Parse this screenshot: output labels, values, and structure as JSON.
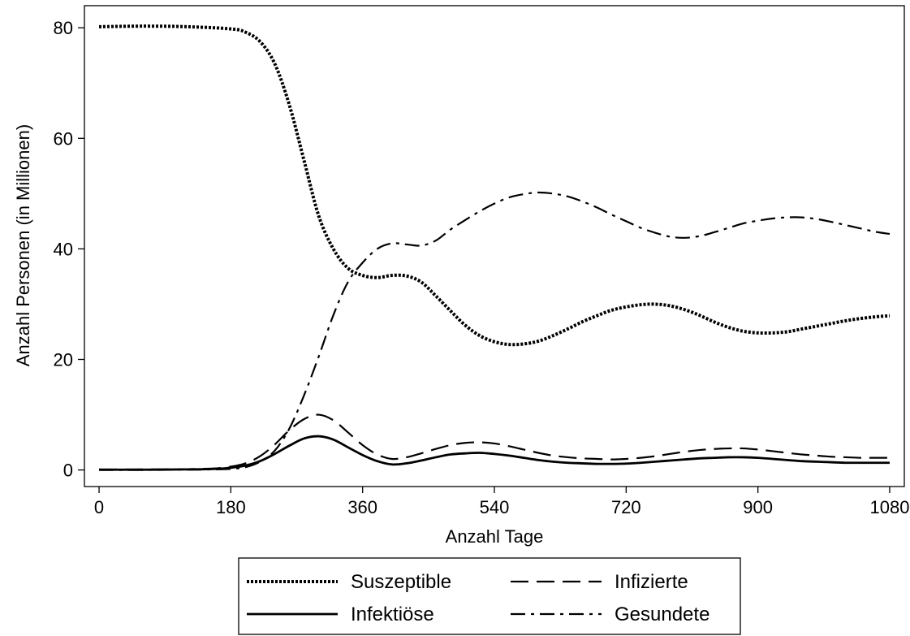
{
  "chart_data": {
    "type": "line",
    "xlabel": "Anzahl Tage",
    "ylabel": "Anzahl Personen (in Millionen)",
    "xlim": [
      -20,
      1100
    ],
    "ylim": [
      -3,
      84
    ],
    "xticks": [
      0,
      180,
      360,
      540,
      720,
      900,
      1080
    ],
    "yticks": [
      0,
      20,
      40,
      60,
      80
    ],
    "legend_position": "bottom",
    "series": [
      {
        "name": "Suszeptible",
        "style": "dotted",
        "color": "#000000",
        "points": [
          [
            0,
            80.2
          ],
          [
            60,
            80.3
          ],
          [
            120,
            80.2
          ],
          [
            180,
            79.8
          ],
          [
            200,
            79.2
          ],
          [
            220,
            77.5
          ],
          [
            240,
            73.5
          ],
          [
            260,
            66
          ],
          [
            280,
            56
          ],
          [
            300,
            46
          ],
          [
            320,
            40
          ],
          [
            340,
            36.5
          ],
          [
            360,
            35.2
          ],
          [
            380,
            34.8
          ],
          [
            400,
            35.2
          ],
          [
            420,
            35.1
          ],
          [
            440,
            34.0
          ],
          [
            460,
            31.5
          ],
          [
            480,
            28.8
          ],
          [
            500,
            26.2
          ],
          [
            520,
            24.3
          ],
          [
            540,
            23.2
          ],
          [
            560,
            22.7
          ],
          [
            580,
            22.8
          ],
          [
            600,
            23.3
          ],
          [
            620,
            24.3
          ],
          [
            640,
            25.5
          ],
          [
            660,
            26.8
          ],
          [
            680,
            27.9
          ],
          [
            700,
            28.9
          ],
          [
            720,
            29.5
          ],
          [
            740,
            29.9
          ],
          [
            760,
            30.0
          ],
          [
            780,
            29.7
          ],
          [
            800,
            29.0
          ],
          [
            820,
            28.0
          ],
          [
            840,
            26.8
          ],
          [
            860,
            25.8
          ],
          [
            880,
            25.1
          ],
          [
            900,
            24.8
          ],
          [
            920,
            24.8
          ],
          [
            940,
            25.0
          ],
          [
            960,
            25.5
          ],
          [
            980,
            26.0
          ],
          [
            1000,
            26.5
          ],
          [
            1020,
            27.0
          ],
          [
            1040,
            27.4
          ],
          [
            1060,
            27.7
          ],
          [
            1080,
            27.9
          ]
        ]
      },
      {
        "name": "Infizierte",
        "style": "dashed",
        "color": "#000000",
        "points": [
          [
            0,
            0.1
          ],
          [
            60,
            0.1
          ],
          [
            120,
            0.15
          ],
          [
            160,
            0.3
          ],
          [
            180,
            0.6
          ],
          [
            200,
            1.2
          ],
          [
            220,
            2.5
          ],
          [
            240,
            4.6
          ],
          [
            260,
            7.2
          ],
          [
            280,
            9.2
          ],
          [
            300,
            10.0
          ],
          [
            320,
            9.0
          ],
          [
            340,
            6.8
          ],
          [
            360,
            4.5
          ],
          [
            380,
            2.8
          ],
          [
            400,
            2.0
          ],
          [
            420,
            2.3
          ],
          [
            440,
            3.0
          ],
          [
            460,
            3.8
          ],
          [
            480,
            4.5
          ],
          [
            500,
            4.9
          ],
          [
            520,
            5.0
          ],
          [
            540,
            4.8
          ],
          [
            560,
            4.3
          ],
          [
            580,
            3.7
          ],
          [
            600,
            3.1
          ],
          [
            620,
            2.6
          ],
          [
            640,
            2.3
          ],
          [
            660,
            2.1
          ],
          [
            680,
            2.0
          ],
          [
            700,
            1.9
          ],
          [
            720,
            2.0
          ],
          [
            740,
            2.2
          ],
          [
            760,
            2.5
          ],
          [
            780,
            2.9
          ],
          [
            800,
            3.3
          ],
          [
            820,
            3.6
          ],
          [
            840,
            3.8
          ],
          [
            860,
            3.9
          ],
          [
            880,
            3.9
          ],
          [
            900,
            3.7
          ],
          [
            920,
            3.4
          ],
          [
            940,
            3.1
          ],
          [
            960,
            2.8
          ],
          [
            980,
            2.6
          ],
          [
            1000,
            2.4
          ],
          [
            1020,
            2.3
          ],
          [
            1040,
            2.2
          ],
          [
            1060,
            2.2
          ],
          [
            1080,
            2.2
          ]
        ]
      },
      {
        "name": "Infektiöse",
        "style": "solid",
        "color": "#000000",
        "points": [
          [
            0,
            0.05
          ],
          [
            60,
            0.05
          ],
          [
            120,
            0.1
          ],
          [
            160,
            0.2
          ],
          [
            180,
            0.4
          ],
          [
            200,
            0.8
          ],
          [
            220,
            1.6
          ],
          [
            240,
            2.9
          ],
          [
            260,
            4.4
          ],
          [
            280,
            5.7
          ],
          [
            300,
            6.1
          ],
          [
            320,
            5.5
          ],
          [
            340,
            4.1
          ],
          [
            360,
            2.7
          ],
          [
            380,
            1.6
          ],
          [
            400,
            1.0
          ],
          [
            420,
            1.2
          ],
          [
            440,
            1.7
          ],
          [
            460,
            2.3
          ],
          [
            480,
            2.8
          ],
          [
            500,
            3.0
          ],
          [
            520,
            3.1
          ],
          [
            540,
            2.9
          ],
          [
            560,
            2.6
          ],
          [
            580,
            2.2
          ],
          [
            600,
            1.8
          ],
          [
            620,
            1.5
          ],
          [
            640,
            1.3
          ],
          [
            660,
            1.2
          ],
          [
            680,
            1.1
          ],
          [
            700,
            1.1
          ],
          [
            720,
            1.15
          ],
          [
            740,
            1.3
          ],
          [
            760,
            1.5
          ],
          [
            780,
            1.7
          ],
          [
            800,
            1.9
          ],
          [
            820,
            2.1
          ],
          [
            840,
            2.2
          ],
          [
            860,
            2.3
          ],
          [
            880,
            2.3
          ],
          [
            900,
            2.2
          ],
          [
            920,
            2.0
          ],
          [
            940,
            1.8
          ],
          [
            960,
            1.6
          ],
          [
            980,
            1.5
          ],
          [
            1000,
            1.4
          ],
          [
            1020,
            1.3
          ],
          [
            1040,
            1.3
          ],
          [
            1060,
            1.3
          ],
          [
            1080,
            1.3
          ]
        ]
      },
      {
        "name": "Gesundete",
        "style": "dashdot",
        "color": "#000000",
        "points": [
          [
            0,
            0
          ],
          [
            60,
            0
          ],
          [
            120,
            0.05
          ],
          [
            160,
            0.1
          ],
          [
            180,
            0.2
          ],
          [
            200,
            0.5
          ],
          [
            220,
            1.5
          ],
          [
            240,
            3.5
          ],
          [
            260,
            7.5
          ],
          [
            280,
            13.5
          ],
          [
            300,
            20.5
          ],
          [
            320,
            28
          ],
          [
            340,
            34
          ],
          [
            360,
            37.5
          ],
          [
            380,
            40
          ],
          [
            400,
            41
          ],
          [
            420,
            40.8
          ],
          [
            440,
            40.6
          ],
          [
            460,
            41.5
          ],
          [
            480,
            43.5
          ],
          [
            500,
            45.2
          ],
          [
            520,
            46.8
          ],
          [
            540,
            48.2
          ],
          [
            560,
            49.3
          ],
          [
            580,
            49.9
          ],
          [
            600,
            50.2
          ],
          [
            620,
            50.0
          ],
          [
            640,
            49.5
          ],
          [
            660,
            48.6
          ],
          [
            680,
            47.5
          ],
          [
            700,
            46.2
          ],
          [
            720,
            45.0
          ],
          [
            740,
            43.8
          ],
          [
            760,
            42.9
          ],
          [
            780,
            42.2
          ],
          [
            800,
            42.0
          ],
          [
            820,
            42.3
          ],
          [
            840,
            43.0
          ],
          [
            860,
            43.8
          ],
          [
            880,
            44.6
          ],
          [
            900,
            45.1
          ],
          [
            920,
            45.5
          ],
          [
            940,
            45.7
          ],
          [
            960,
            45.7
          ],
          [
            980,
            45.4
          ],
          [
            1000,
            44.9
          ],
          [
            1020,
            44.3
          ],
          [
            1040,
            43.7
          ],
          [
            1060,
            43.1
          ],
          [
            1080,
            42.7
          ]
        ]
      }
    ],
    "legend_order": [
      "Suszeptible",
      "Infizierte",
      "Infektiöse",
      "Gesundete"
    ]
  }
}
